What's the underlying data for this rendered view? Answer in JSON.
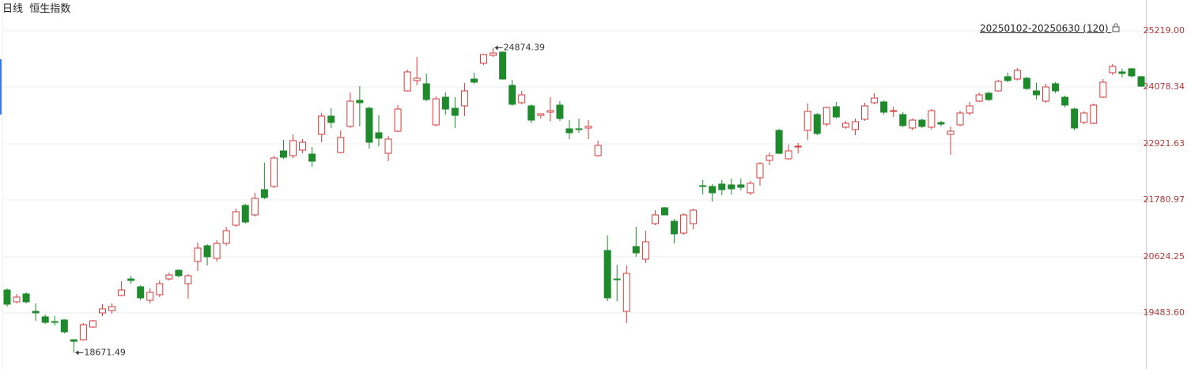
{
  "header": {
    "period": "日线",
    "name": "恒生指数",
    "range": "20250102-20250630 (120)"
  },
  "chart_data": {
    "type": "candlestick",
    "up_color": "#d23c3c",
    "down_color": "#1f8a2c",
    "grid": true,
    "ylim": [
      18341,
      25846
    ],
    "yticks": [
      {
        "value": 25219,
        "label": "25219.00"
      },
      24078.34,
      22921.63,
      21780.97,
      20624.25,
      {
        "value": 19483.6,
        "label": "19483.60"
      }
    ],
    "series": [
      {
        "open": [
          19948,
          19707,
          19868,
          19514,
          19402,
          19306,
          19338,
          18936,
          18936,
          19193,
          19482,
          19530,
          19836,
          20173,
          20013,
          19739,
          19852,
          20173,
          20350,
          20077,
          20527,
          20848,
          20591,
          20896,
          21266,
          21668,
          21475,
          21989,
          22053,
          22777,
          22680,
          22793,
          22712,
          23114,
          23484,
          22744,
          23275,
          23805,
          23644,
          23146,
          22728,
          23178,
          23998,
          24207,
          24143,
          23307,
          23869,
          23644,
          23693,
          24239,
          24560,
          24721,
          24785,
          24110,
          23757,
          23693,
          23500,
          23564,
          23709,
          23227,
          23227,
          23243,
          22680,
          20752,
          20173,
          19514,
          20832,
          20575,
          21298,
          21620,
          21346,
          21105,
          21298,
          22070,
          22054,
          22102,
          22086,
          22086,
          21925,
          22230,
          22584,
          23194,
          22616,
          22857,
          23194,
          23516,
          23323,
          23676,
          23259,
          23210,
          23419,
          23757,
          23773,
          23580,
          23516,
          23243,
          23403,
          23259,
          23355,
          23114,
          23307,
          23548,
          23789,
          23950,
          23998,
          24287,
          24239,
          24255,
          23998,
          23789,
          24143,
          23869,
          23628,
          23355,
          23339,
          23869,
          24368,
          24384,
          24448,
          24287
        ],
        "high": [
          19980,
          19868,
          19900,
          19675,
          19450,
          19418,
          19354,
          18936,
          19273,
          19338,
          19659,
          19675,
          20125,
          20238,
          20045,
          19980,
          20141,
          20302,
          20366,
          20270,
          20912,
          20880,
          20961,
          21234,
          21604,
          21700,
          21925,
          22536,
          22680,
          23002,
          23114,
          23018,
          22857,
          23548,
          23644,
          23194,
          23966,
          24094,
          23676,
          23500,
          23082,
          23709,
          24432,
          24689,
          24351,
          23885,
          23966,
          23869,
          24159,
          24368,
          24753,
          24874.39,
          24801,
          24223,
          23998,
          23725,
          23532,
          23869,
          23789,
          23403,
          23436,
          23403,
          22986,
          21057,
          20462,
          20446,
          21234,
          21154,
          21571,
          21636,
          21395,
          21507,
          21604,
          22182,
          22102,
          22182,
          22214,
          22214,
          22166,
          22552,
          22744,
          23227,
          22905,
          22937,
          23741,
          23548,
          23676,
          23773,
          23387,
          23436,
          23757,
          23950,
          23805,
          23676,
          23564,
          23436,
          23436,
          23628,
          23387,
          23275,
          23596,
          23773,
          23966,
          23982,
          24223,
          24368,
          24464,
          24287,
          24159,
          24143,
          24175,
          23902,
          23660,
          23580,
          23741,
          24239,
          24544,
          24448,
          24464,
          24303
        ],
        "low": [
          19611,
          19675,
          19675,
          19322,
          19257,
          19225,
          19064,
          18671.49,
          18920,
          19177,
          19418,
          19466,
          19820,
          20077,
          19739,
          19675,
          19804,
          20141,
          20205,
          19772,
          20334,
          20446,
          20527,
          20848,
          21234,
          21298,
          21443,
          21796,
          22021,
          22616,
          22632,
          22728,
          22455,
          22953,
          23243,
          22728,
          23243,
          23275,
          22825,
          22873,
          22568,
          23162,
          23982,
          24110,
          23789,
          23275,
          23516,
          23243,
          23484,
          24143,
          24528,
          24689,
          24223,
          23693,
          23725,
          23339,
          23436,
          23371,
          23387,
          23018,
          23146,
          23018,
          22664,
          19723,
          19723,
          19273,
          20623,
          20495,
          21266,
          21475,
          20896,
          21073,
          21185,
          21893,
          21748,
          21877,
          21893,
          21973,
          21877,
          22070,
          22487,
          22712,
          22600,
          22728,
          23002,
          23098,
          23275,
          23436,
          23227,
          23098,
          23387,
          23725,
          23516,
          23468,
          23259,
          23194,
          23243,
          23210,
          23275,
          22696,
          23275,
          23500,
          23773,
          23789,
          23982,
          24175,
          24207,
          24014,
          23821,
          23757,
          23950,
          23660,
          23194,
          23323,
          23323,
          23853,
          24319,
          24271,
          24271,
          24078
        ],
        "close": [
          19659,
          19804,
          19707,
          19482,
          19289,
          19289,
          19097,
          18904,
          19241,
          19322,
          19563,
          19611,
          19948,
          20141,
          19788,
          19900,
          20077,
          20254,
          20238,
          20238,
          20800,
          20623,
          20896,
          21154,
          21539,
          21330,
          21812,
          21828,
          22632,
          22648,
          22986,
          22953,
          22568,
          23484,
          23355,
          23050,
          23789,
          23757,
          22953,
          23034,
          23018,
          23628,
          24384,
          24255,
          23821,
          23837,
          23628,
          23500,
          23998,
          24175,
          24737,
          24769,
          24239,
          23725,
          23917,
          23403,
          23532,
          23596,
          23436,
          23146,
          23210,
          23275,
          22889,
          19788,
          20157,
          20286,
          20703,
          20929,
          21475,
          21475,
          21089,
          21475,
          21571,
          22054,
          21925,
          21989,
          22005,
          22037,
          22118,
          22519,
          22680,
          22728,
          22777,
          22873,
          23580,
          23130,
          23660,
          23468,
          23339,
          23371,
          23693,
          23853,
          23564,
          23596,
          23291,
          23403,
          23275,
          23596,
          23323,
          23178,
          23548,
          23693,
          23917,
          23821,
          24191,
          24207,
          24416,
          24046,
          23917,
          24078,
          23998,
          23709,
          23243,
          23548,
          23709,
          24175,
          24496,
          24351,
          24303,
          24094
        ]
      }
    ]
  }
}
